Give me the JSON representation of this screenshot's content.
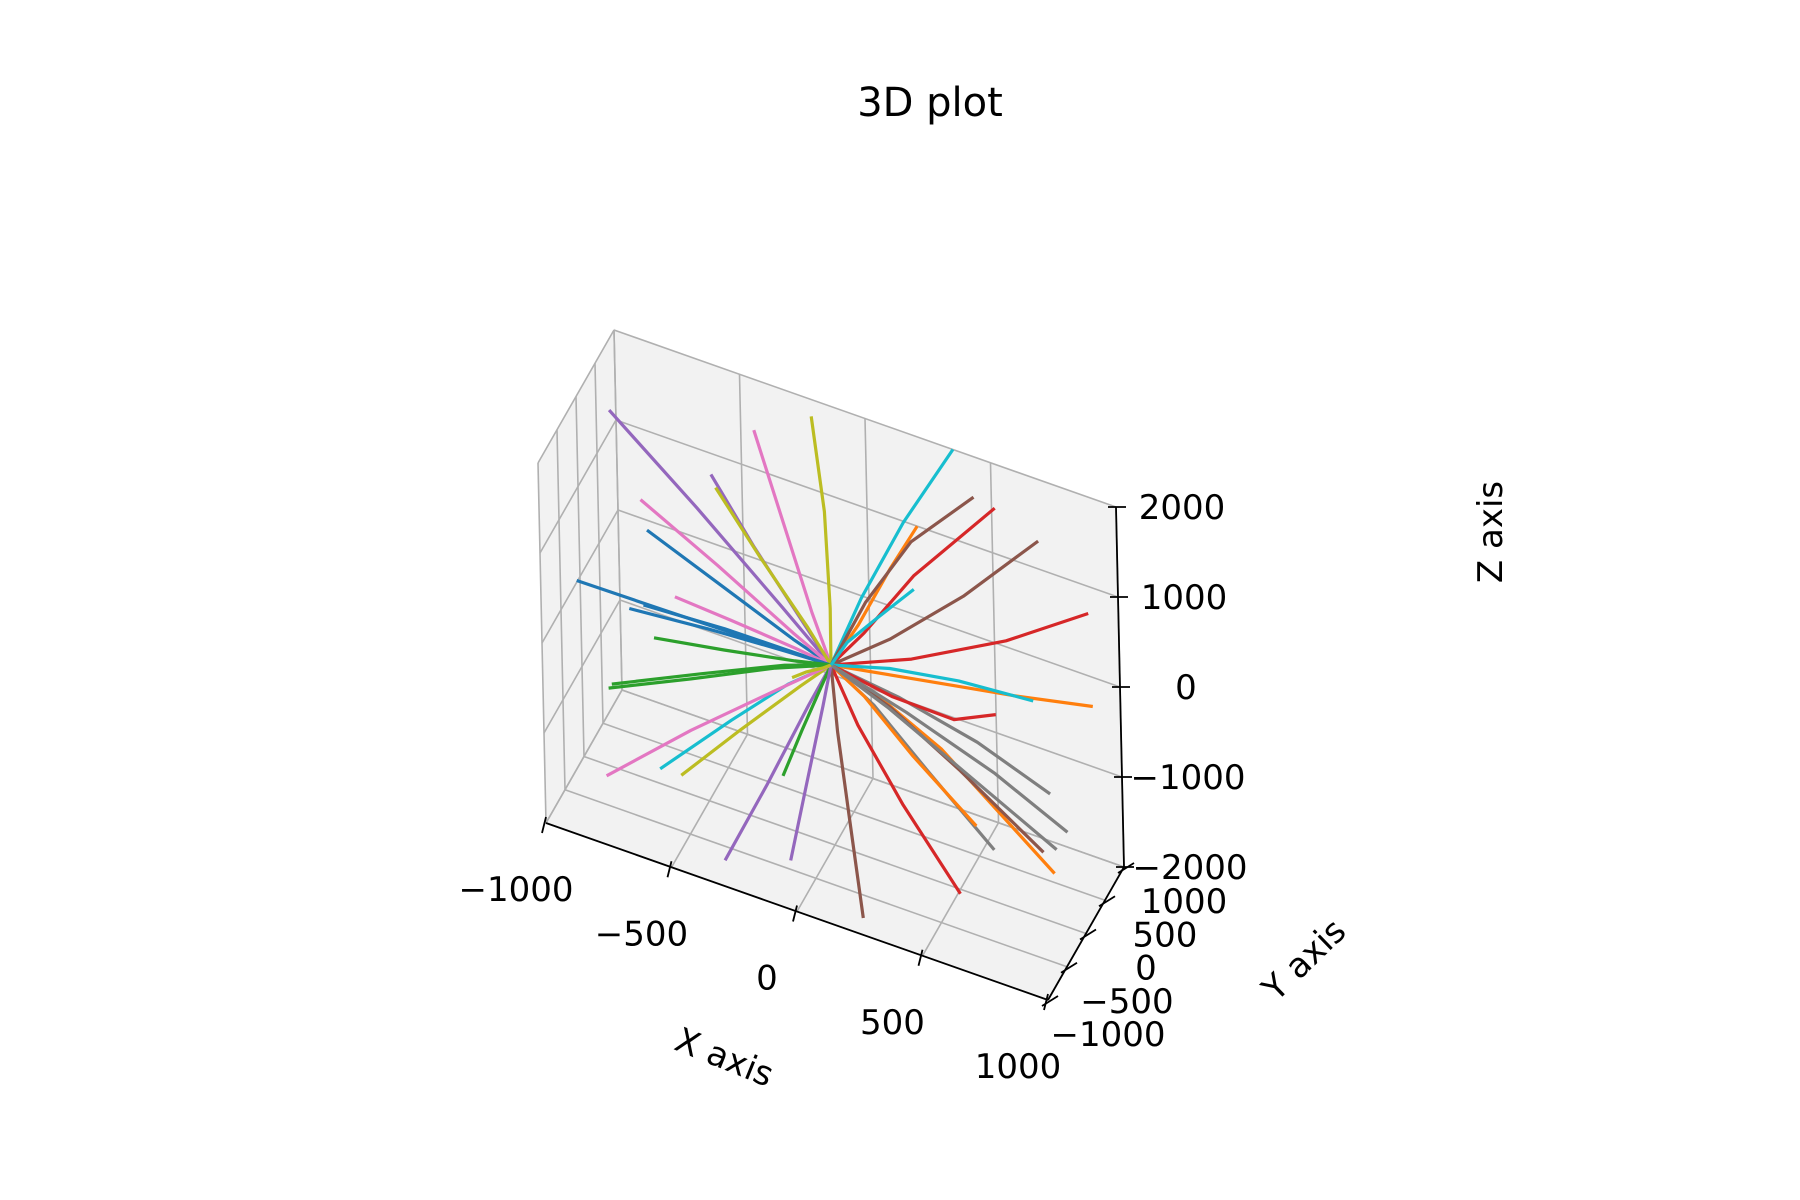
{
  "chart_data": {
    "type": "line",
    "projection": "3d",
    "title": "3D plot",
    "xlabel": "X axis",
    "ylabel": "Y axis",
    "zlabel": "Z axis",
    "xlim": [
      -1000,
      1000
    ],
    "ylim": [
      -1000,
      1000
    ],
    "zlim": [
      -2000,
      2000
    ],
    "xticks": [
      {
        "value": -1000,
        "label": "−1000"
      },
      {
        "value": -500,
        "label": "−500"
      },
      {
        "value": 0,
        "label": "0"
      },
      {
        "value": 500,
        "label": "500"
      },
      {
        "value": 1000,
        "label": "1000"
      }
    ],
    "yticks": [
      {
        "value": -1000,
        "label": "−1000"
      },
      {
        "value": -500,
        "label": "−500"
      },
      {
        "value": 0,
        "label": "0"
      },
      {
        "value": 500,
        "label": "500"
      },
      {
        "value": 1000,
        "label": "1000"
      }
    ],
    "zticks": [
      {
        "value": -2000,
        "label": "−2000"
      },
      {
        "value": -1000,
        "label": "−1000"
      },
      {
        "value": 0,
        "label": "0"
      },
      {
        "value": 1000,
        "label": "1000"
      },
      {
        "value": 2000,
        "label": "2000"
      }
    ],
    "grid": true,
    "legend": "none",
    "colors": [
      "#1f77b4",
      "#ff7f0e",
      "#2ca02c",
      "#d62728",
      "#9467bd",
      "#8c564b",
      "#e377c2",
      "#7f7f7f",
      "#bcbd22",
      "#17becf"
    ],
    "series_note_removed": true,
    "series": [
      {
        "x": [
          -700,
          -400,
          -150,
          0
        ],
        "y": [
          -300,
          -150,
          -50,
          0
        ],
        "z": [
          200,
          120,
          40,
          0
        ]
      },
      {
        "x": [
          0,
          150,
          400,
          800
        ],
        "y": [
          0,
          80,
          220,
          500
        ],
        "z": [
          0,
          -200,
          -700,
          -1900
        ]
      },
      {
        "x": [
          -800,
          -500,
          -200,
          0
        ],
        "y": [
          -600,
          -400,
          -150,
          0
        ],
        "z": [
          -600,
          -350,
          -120,
          0
        ]
      },
      {
        "x": [
          0,
          120,
          300,
          600
        ],
        "y": [
          0,
          100,
          250,
          450
        ],
        "z": [
          0,
          400,
          1100,
          2000
        ]
      },
      {
        "x": [
          -900,
          -550,
          -200,
          0
        ],
        "y": [
          200,
          150,
          60,
          0
        ],
        "z": [
          1800,
          1100,
          400,
          0
        ]
      },
      {
        "x": [
          0,
          250,
          550,
          900
        ],
        "y": [
          0,
          -100,
          -250,
          -400
        ],
        "z": [
          0,
          -150,
          -450,
          -900
        ]
      },
      {
        "x": [
          -400,
          -250,
          -100,
          0
        ],
        "y": [
          700,
          450,
          180,
          0
        ],
        "z": [
          1700,
          1000,
          350,
          0
        ]
      },
      {
        "x": [
          0,
          200,
          450,
          750
        ],
        "y": [
          0,
          -200,
          -450,
          -700
        ],
        "z": [
          0,
          -100,
          -400,
          -800
        ]
      },
      {
        "x": [
          -200,
          -100,
          -30,
          0
        ],
        "y": [
          900,
          550,
          200,
          0
        ],
        "z": [
          1900,
          1200,
          450,
          0
        ]
      },
      {
        "x": [
          0,
          -150,
          -350,
          -600
        ],
        "y": [
          0,
          -150,
          -350,
          -600
        ],
        "z": [
          0,
          -250,
          -700,
          -1300
        ]
      },
      {
        "x": [
          -600,
          -350,
          -120,
          0
        ],
        "y": [
          -800,
          -500,
          -180,
          0
        ],
        "z": [
          1500,
          900,
          300,
          0
        ]
      },
      {
        "x": [
          0,
          100,
          250,
          450
        ],
        "y": [
          0,
          200,
          450,
          750
        ],
        "z": [
          0,
          -400,
          -1100,
          -1900
        ]
      },
      {
        "x": [
          -850,
          -500,
          -180,
          0
        ],
        "y": [
          -200,
          -120,
          -40,
          0
        ],
        "z": [
          -900,
          -500,
          -150,
          0
        ]
      },
      {
        "x": [
          0,
          300,
          650,
          950
        ],
        "y": [
          0,
          150,
          350,
          550
        ],
        "z": [
          0,
          250,
          650,
          1100
        ]
      },
      {
        "x": [
          -300,
          -180,
          -60,
          0
        ],
        "y": [
          -900,
          -550,
          -200,
          0
        ],
        "z": [
          -1800,
          -1100,
          -350,
          0
        ]
      },
      {
        "x": [
          0,
          200,
          450,
          700
        ],
        "y": [
          0,
          250,
          550,
          900
        ],
        "z": [
          0,
          300,
          800,
          1400
        ]
      },
      {
        "x": [
          -700,
          -450,
          -160,
          0
        ],
        "y": [
          500,
          320,
          120,
          0
        ],
        "z": [
          -300,
          -180,
          -60,
          0
        ]
      },
      {
        "x": [
          0,
          280,
          600,
          900
        ],
        "y": [
          0,
          -50,
          -120,
          -200
        ],
        "z": [
          0,
          -50,
          -180,
          -400
        ]
      },
      {
        "x": [
          -500,
          -300,
          -100,
          0
        ],
        "y": [
          -700,
          -420,
          -150,
          0
        ],
        "z": [
          -1200,
          -700,
          -220,
          0
        ]
      },
      {
        "x": [
          0,
          80,
          200,
          350
        ],
        "y": [
          0,
          300,
          650,
          1000
        ],
        "z": [
          0,
          600,
          1300,
          2000
        ]
      },
      {
        "x": [
          -950,
          -600,
          -220,
          0
        ],
        "y": [
          -400,
          -250,
          -90,
          0
        ],
        "z": [
          300,
          180,
          60,
          0
        ]
      },
      {
        "x": [
          0,
          350,
          700,
          1000
        ],
        "y": [
          0,
          100,
          200,
          300
        ],
        "z": [
          0,
          100,
          200,
          300
        ]
      },
      {
        "x": [
          -250,
          -150,
          -50,
          0
        ],
        "y": [
          300,
          180,
          60,
          0
        ],
        "z": [
          -1700,
          -1000,
          -330,
          0
        ]
      },
      {
        "x": [
          0,
          150,
          380,
          650
        ],
        "y": [
          0,
          -300,
          -650,
          -950
        ],
        "z": [
          0,
          -300,
          -700,
          -1200
        ]
      },
      {
        "x": [
          -600,
          -380,
          -130,
          0
        ],
        "y": [
          850,
          520,
          180,
          0
        ],
        "z": [
          900,
          550,
          180,
          0
        ]
      },
      {
        "x": [
          0,
          60,
          150,
          250
        ],
        "y": [
          0,
          -250,
          -550,
          -900
        ],
        "z": [
          0,
          -500,
          -1200,
          -1900
        ]
      },
      {
        "x": [
          -750,
          -450,
          -150,
          0
        ],
        "y": [
          0,
          20,
          10,
          0
        ],
        "z": [
          1100,
          650,
          200,
          0
        ]
      },
      {
        "x": [
          0,
          220,
          500,
          850
        ],
        "y": [
          0,
          50,
          150,
          250
        ],
        "z": [
          0,
          -300,
          -800,
          -1400
        ]
      },
      {
        "x": [
          -400,
          -250,
          -80,
          0
        ],
        "y": [
          -300,
          -180,
          -60,
          0
        ],
        "z": [
          1800,
          1100,
          380,
          0
        ]
      },
      {
        "x": [
          0,
          180,
          400,
          650
        ],
        "y": [
          0,
          350,
          700,
          1000
        ],
        "z": [
          0,
          -120,
          -300,
          -500
        ]
      },
      {
        "x": [
          -900,
          -550,
          -200,
          0
        ],
        "y": [
          600,
          380,
          130,
          0
        ],
        "z": [
          -700,
          -420,
          -140,
          0
        ]
      },
      {
        "x": [
          0,
          50,
          120,
          200
        ],
        "y": [
          0,
          400,
          800,
          1000
        ],
        "z": [
          0,
          200,
          600,
          1000
        ]
      },
      {
        "x": [
          -550,
          -330,
          -110,
          0
        ],
        "y": [
          -1000,
          -620,
          -220,
          0
        ],
        "z": [
          500,
          300,
          100,
          0
        ]
      },
      {
        "x": [
          0,
          300,
          600,
          800
        ],
        "y": [
          0,
          -350,
          -700,
          -900
        ],
        "z": [
          0,
          200,
          500,
          900
        ]
      },
      {
        "x": [
          -100,
          -60,
          -20,
          0
        ],
        "y": [
          -500,
          -300,
          -100,
          0
        ],
        "z": [
          -1900,
          -1150,
          -400,
          0
        ]
      },
      {
        "x": [
          0,
          120,
          280,
          500
        ],
        "y": [
          0,
          150,
          330,
          550
        ],
        "z": [
          0,
          700,
          1400,
          1950
        ]
      },
      {
        "x": [
          -800,
          -500,
          -170,
          0
        ],
        "y": [
          -700,
          -430,
          -150,
          0
        ],
        "z": [
          -1500,
          -900,
          -300,
          0
        ]
      },
      {
        "x": [
          0,
          250,
          550,
          800
        ],
        "y": [
          0,
          300,
          600,
          850
        ],
        "z": [
          0,
          -500,
          -1100,
          -1700
        ]
      },
      {
        "x": [
          -300,
          -190,
          -60,
          0
        ],
        "y": [
          900,
          560,
          190,
          0
        ],
        "z": [
          -1100,
          -680,
          -230,
          0
        ]
      },
      {
        "x": [
          0,
          100,
          260,
          450
        ],
        "y": [
          0,
          -200,
          -430,
          -700
        ],
        "z": [
          0,
          500,
          1100,
          1800
        ]
      }
    ]
  }
}
